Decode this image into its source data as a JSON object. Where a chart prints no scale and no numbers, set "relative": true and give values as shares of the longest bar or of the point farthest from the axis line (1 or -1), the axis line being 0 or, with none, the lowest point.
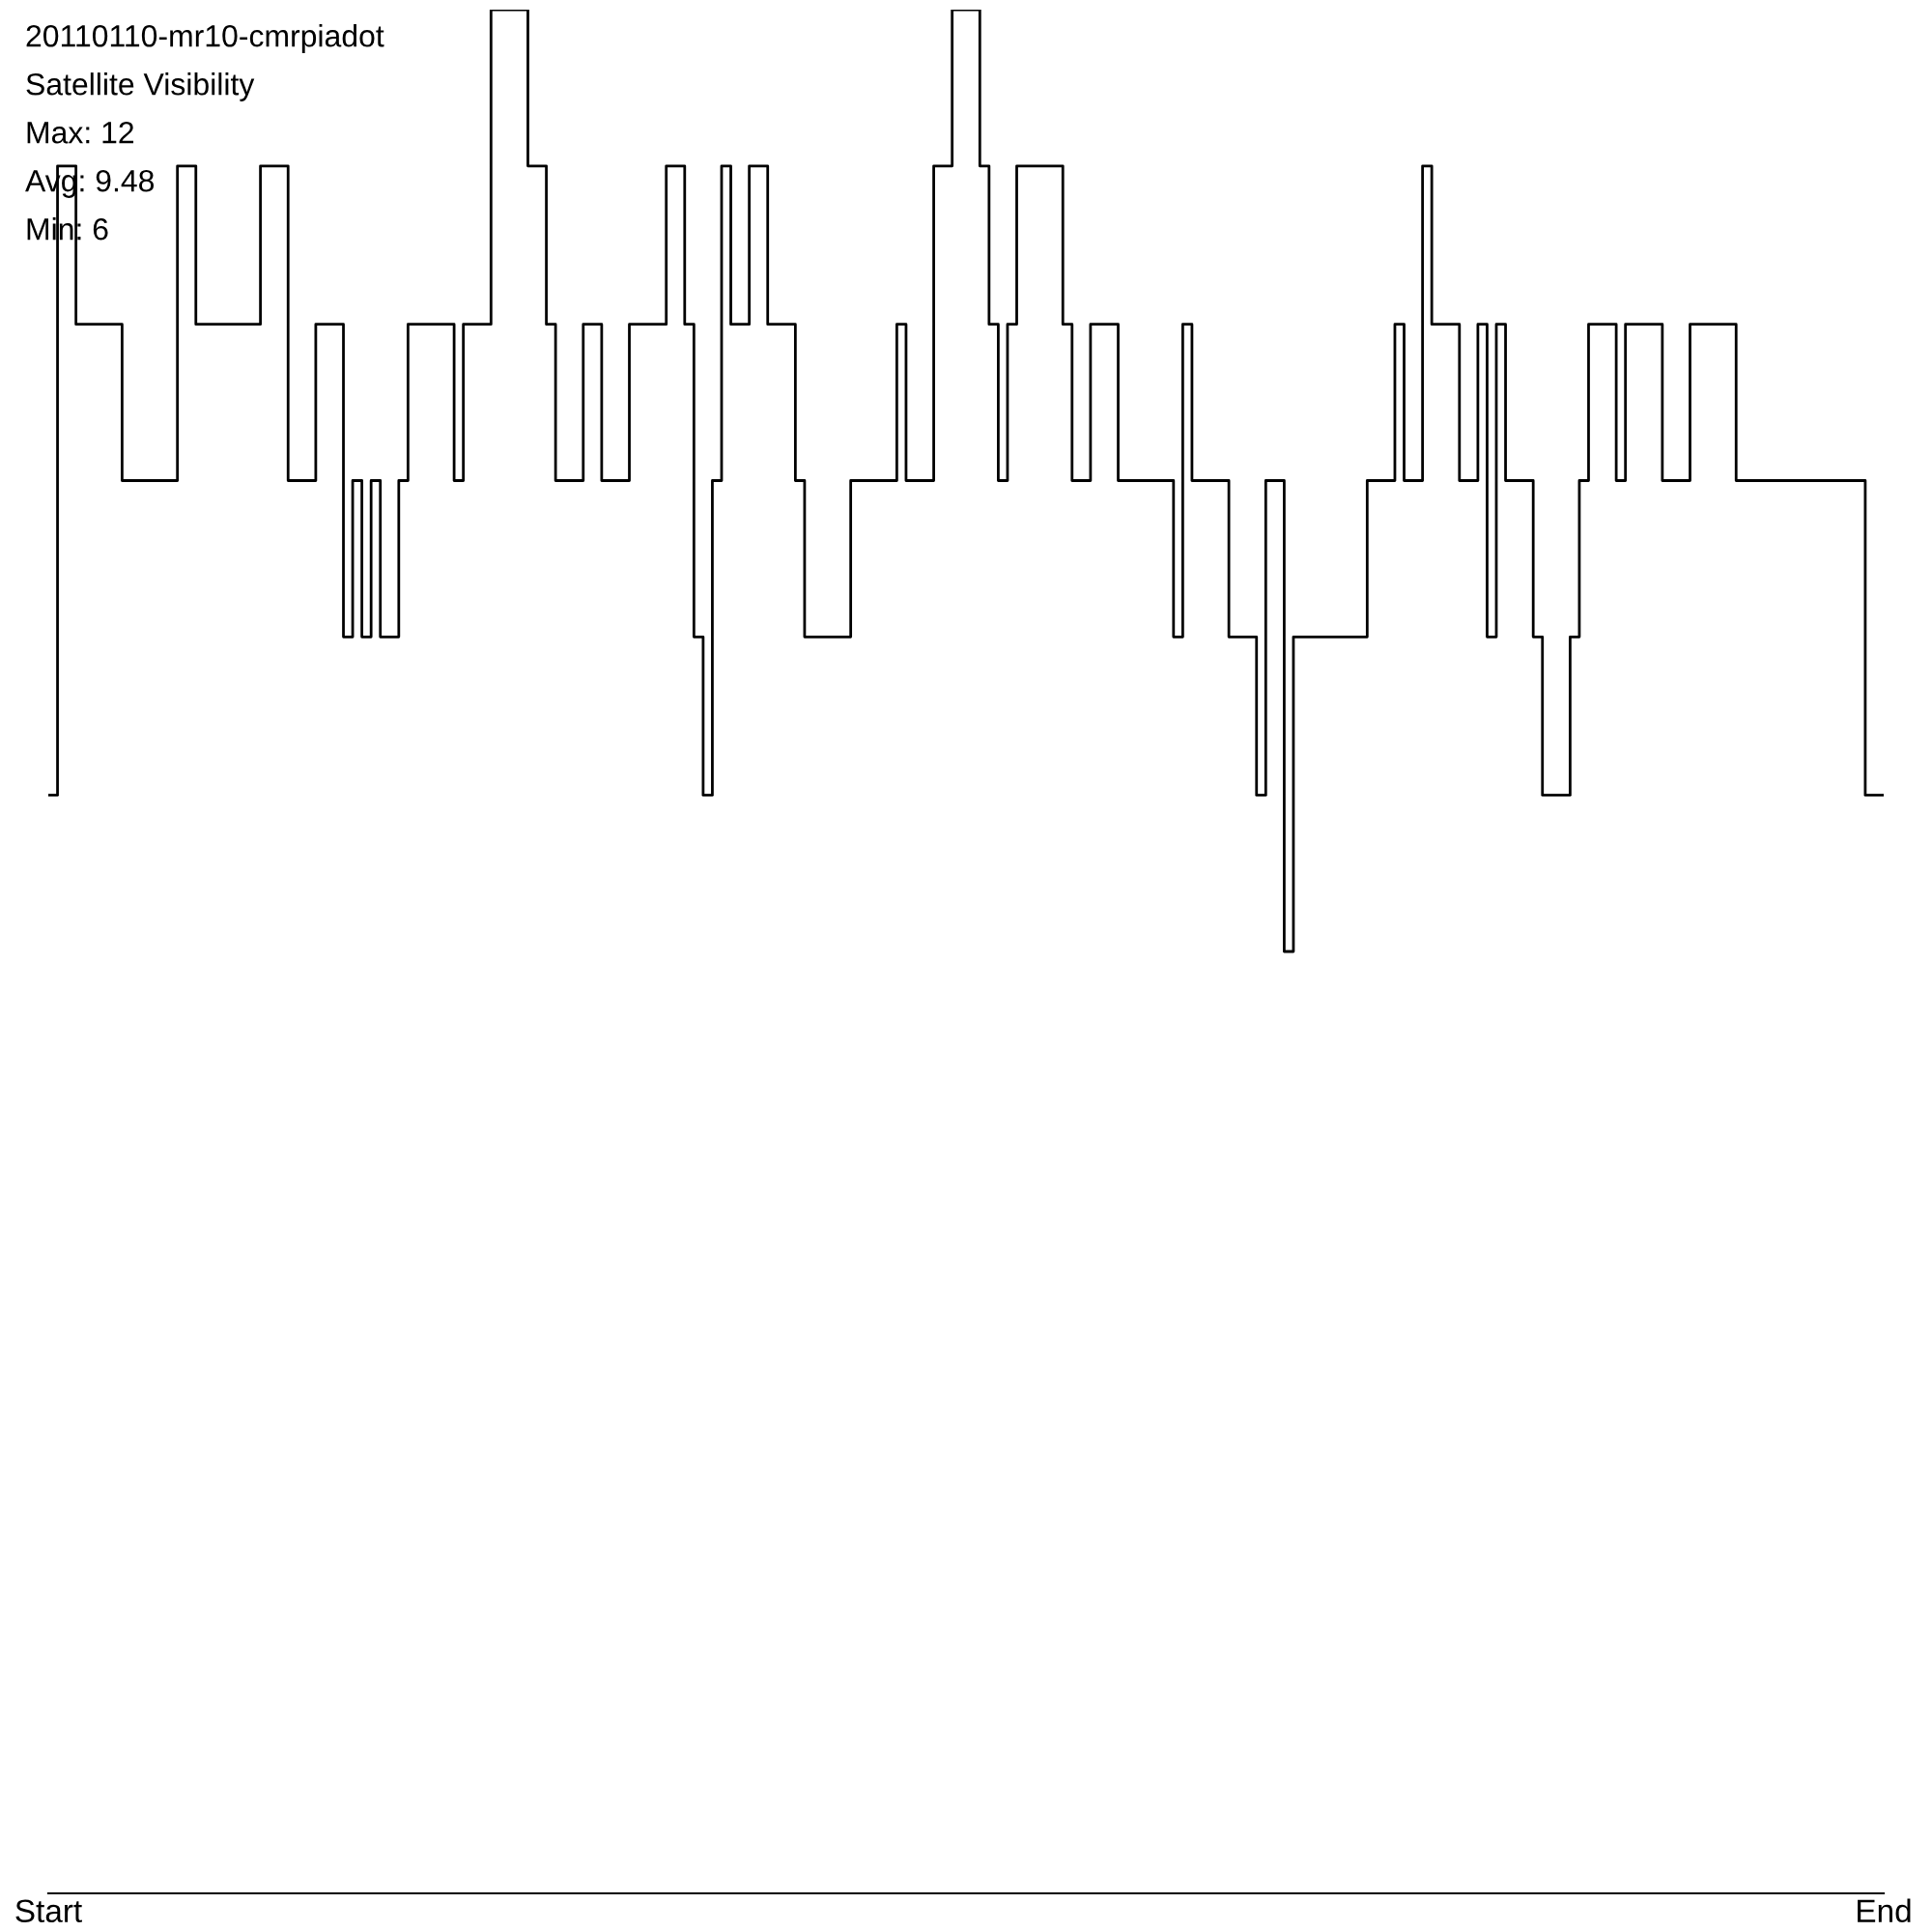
{
  "chart_data": {
    "type": "step",
    "title": "20110110-mr10-cmrpiadot",
    "subtitle": "Satellite Visibility",
    "annotations": [
      "Max: 12",
      "Avg: 9.48",
      "Min: 6"
    ],
    "relative": true,
    "categories": [
      "Start",
      null,
      null,
      null,
      null,
      null,
      null,
      null,
      null,
      null,
      null,
      null,
      null,
      null,
      null,
      null,
      null,
      null,
      null,
      null,
      null,
      null,
      null,
      null,
      null,
      null,
      null,
      null,
      null,
      null,
      null,
      null,
      null,
      null,
      null,
      null,
      null,
      null,
      null,
      null,
      null,
      null,
      null,
      null,
      null,
      null,
      null,
      null,
      null,
      null,
      null,
      null,
      null,
      null,
      null,
      null,
      null,
      null,
      null,
      null,
      null,
      null,
      null,
      null,
      null,
      null,
      null,
      null,
      null,
      null,
      null,
      null,
      null,
      null,
      null,
      null,
      null,
      null,
      null,
      null,
      null,
      null,
      null,
      null,
      null,
      null,
      null,
      null,
      null,
      null,
      null,
      null,
      null,
      null,
      null,
      null,
      null,
      null,
      null,
      null,
      null,
      null,
      null,
      null,
      null,
      null,
      null,
      null,
      null,
      null,
      null,
      null,
      null,
      null,
      null,
      null,
      null,
      null,
      null,
      null,
      null,
      null,
      null,
      null,
      null,
      null,
      null,
      null,
      null,
      null,
      null,
      null,
      null,
      null,
      null,
      null,
      null,
      null,
      null,
      null,
      null,
      null,
      null,
      null,
      null,
      null,
      null,
      null,
      null,
      null,
      null,
      null,
      null,
      null,
      null,
      null,
      null,
      null,
      null,
      null,
      null,
      null,
      null,
      null,
      null,
      null,
      null,
      null,
      null,
      null,
      null,
      null,
      null,
      null,
      null,
      null,
      null,
      null,
      null,
      null,
      null,
      null,
      null,
      null,
      null,
      null,
      null,
      null,
      null,
      null,
      null,
      null,
      null,
      null,
      null,
      null,
      null,
      null,
      null,
      "End"
    ],
    "series": [
      {
        "color": "#000000",
        "values": [
          0.583,
          0.917,
          0.917,
          0.833,
          0.833,
          0.833,
          0.833,
          0.833,
          0.75,
          0.75,
          0.75,
          0.75,
          0.75,
          0.75,
          0.917,
          0.917,
          0.833,
          0.833,
          0.833,
          0.833,
          0.833,
          0.833,
          0.833,
          0.917,
          0.917,
          0.917,
          0.75,
          0.75,
          0.75,
          0.833,
          0.833,
          0.833,
          0.667,
          0.75,
          0.667,
          0.75,
          0.667,
          0.667,
          0.75,
          0.833,
          0.833,
          0.833,
          0.833,
          0.833,
          0.75,
          0.833,
          0.833,
          0.833,
          1,
          1,
          1,
          1,
          0.917,
          0.917,
          0.833,
          0.75,
          0.75,
          0.75,
          0.833,
          0.833,
          0.75,
          0.75,
          0.75,
          0.833,
          0.833,
          0.833,
          0.833,
          0.917,
          0.917,
          0.833,
          0.667,
          0.583,
          0.75,
          0.917,
          0.833,
          0.833,
          0.917,
          0.917,
          0.833,
          0.833,
          0.833,
          0.75,
          0.667,
          0.667,
          0.667,
          0.667,
          0.667,
          0.75,
          0.75,
          0.75,
          0.75,
          0.75,
          0.833,
          0.75,
          0.75,
          0.75,
          0.917,
          0.917,
          1,
          1,
          1,
          0.917,
          0.833,
          0.75,
          0.833,
          0.917,
          0.917,
          0.917,
          0.917,
          0.917,
          0.833,
          0.75,
          0.75,
          0.833,
          0.833,
          0.833,
          0.75,
          0.75,
          0.75,
          0.75,
          0.75,
          0.75,
          0.667,
          0.833,
          0.75,
          0.75,
          0.75,
          0.75,
          0.667,
          0.667,
          0.667,
          0.583,
          0.75,
          0.75,
          0.5,
          0.667,
          0.667,
          0.667,
          0.667,
          0.667,
          0.667,
          0.667,
          0.667,
          0.75,
          0.75,
          0.75,
          0.833,
          0.75,
          0.75,
          0.917,
          0.833,
          0.833,
          0.833,
          0.75,
          0.75,
          0.833,
          0.667,
          0.833,
          0.75,
          0.75,
          0.75,
          0.667,
          0.583,
          0.583,
          0.583,
          0.667,
          0.75,
          0.833,
          0.833,
          0.833,
          0.75,
          0.833,
          0.833,
          0.833,
          0.833,
          0.75,
          0.75,
          0.75,
          0.833,
          0.833,
          0.833,
          0.833,
          0.833,
          0.75,
          0.75,
          0.75,
          0.75,
          0.75,
          0.75,
          0.75,
          0.75,
          0.75,
          0.75,
          0.75,
          0.75,
          0.75,
          0.75,
          0.583,
          0.583,
          0.583
        ]
      }
    ],
    "grid": false,
    "legend": false,
    "marker": "none",
    "line_style": "solid"
  }
}
